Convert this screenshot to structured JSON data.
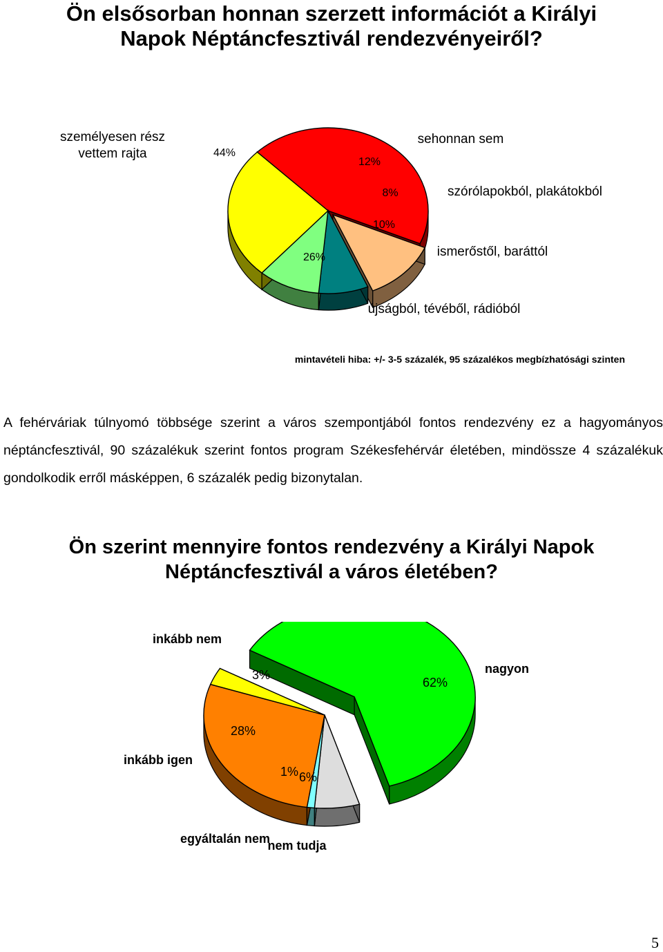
{
  "heading1_line1": "Ön elsősorban honnan szerzett információt a Királyi",
  "heading1_line2": "Napok Néptáncfesztivál rendezvényeiről?",
  "note": "mintavételi hiba: +/- 3-5 százalék, 95 százalékos megbízhatósági szinten",
  "paragraph": "A fehérváriak túlnyomó többsége szerint a város szempontjából fontos rendezvény ez a hagyományos néptáncfesztivál, 90 százalékuk szerint fontos program Székesfehérvár életében, mindössze 4 százalékuk gondolkodik erről másképpen, 6 százalék pedig bizonytalan.",
  "heading2_line1": "Ön szerint mennyire fontos rendezvény a Királyi Napok",
  "heading2_line2": "Néptáncfesztivál a város életében?",
  "page_number": "5",
  "chart_data": [
    {
      "type": "pie",
      "title": "Ön elsősorban honnan szerzett információt a Királyi Napok Néptáncfesztivál rendezvényeiről?",
      "categories": [
        "személyesen részt vettem rajta",
        "sehonnan sem",
        "szórólapokból, plakátokból",
        "ismerőstől, baráttól",
        "újságból, tévéből, rádióból"
      ],
      "values": [
        44,
        12,
        8,
        10,
        26
      ],
      "labels": [
        "44%",
        "12%",
        "8%",
        "10%",
        "26%"
      ],
      "colors": [
        "#ff0000",
        "#ffc080",
        "#008080",
        "#80ff80",
        "#ffff00"
      ]
    },
    {
      "type": "pie",
      "title": "Ön szerint mennyire fontos rendezvény a Királyi Napok Néptáncfesztivál a város életében?",
      "categories": [
        "nagyon",
        "nem tudja",
        "egyáltalán nem",
        "inkább igen",
        "inkább nem"
      ],
      "values": [
        62,
        6,
        1,
        28,
        3
      ],
      "labels": [
        "62%",
        "6%",
        "1%",
        "28%",
        "3%"
      ],
      "colors": [
        "#00ff00",
        "#dddddd",
        "#80ffff",
        "#ff8000",
        "#ffff00"
      ]
    }
  ]
}
